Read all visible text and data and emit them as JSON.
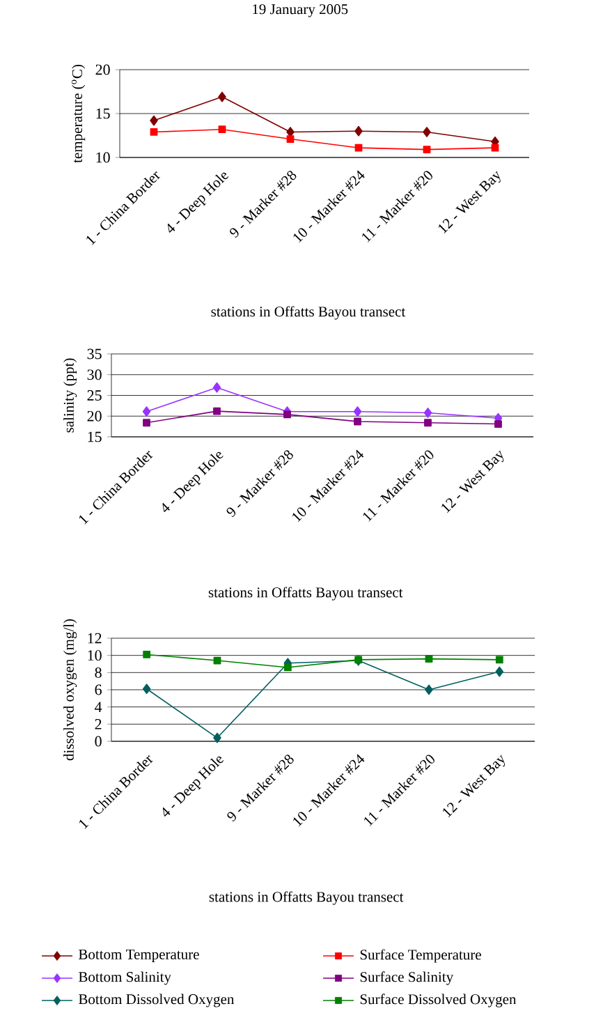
{
  "chart_data": [
    {
      "type": "line",
      "title": "19 January 2005",
      "xlabel": "stations in Offatts Bayou transect",
      "ylabel": "temperature ($^{o}$C)",
      "categories": [
        "1 - China Border",
        "4 - Deep Hole",
        "9 - Marker #28",
        "10 - Marker #24",
        "11 - Marker #20",
        "12 - West Bay"
      ],
      "ylim": [
        10,
        20
      ],
      "yticks": [
        10,
        15,
        20
      ],
      "grid": "y",
      "legend": "bottom",
      "line_style": "solid",
      "series": [
        {
          "name": "Bottom Temperature",
          "color": "#800000",
          "marker": "diamond",
          "values": [
            14.2,
            16.9,
            12.9,
            13.0,
            12.9,
            11.8
          ]
        },
        {
          "name": "Surface Temperature",
          "color": "#ff0000",
          "marker": "square",
          "values": [
            12.9,
            13.2,
            12.1,
            11.1,
            10.9,
            11.1
          ]
        }
      ]
    },
    {
      "type": "line",
      "xlabel": "stations in Offatts Bayou transect",
      "ylabel": "salinity (ppt)",
      "categories": [
        "1 - China Border",
        "4 - Deep Hole",
        "9 - Marker #28",
        "10 - Marker #24",
        "11 - Marker #20",
        "12 - West Bay"
      ],
      "ylim": [
        15,
        35
      ],
      "yticks": [
        15,
        20,
        25,
        30,
        35
      ],
      "grid": "y",
      "legend": "bottom",
      "line_style": "solid",
      "series": [
        {
          "name": "Bottom Salinity",
          "color": "#9933ff",
          "marker": "diamond",
          "values": [
            21.1,
            26.9,
            21.1,
            21.1,
            20.8,
            19.5
          ]
        },
        {
          "name": "Surface Salinity",
          "color": "#800080",
          "marker": "square",
          "values": [
            18.4,
            21.2,
            20.4,
            18.7,
            18.4,
            18.1
          ]
        }
      ]
    },
    {
      "type": "line",
      "xlabel": "stations in Offatts Bayou transect",
      "ylabel": "dissolved oxygen (mg/l)",
      "categories": [
        "1 - China Border",
        "4 - Deep Hole",
        "9 - Marker #28",
        "10 - Marker #24",
        "11 - Marker #20",
        "12 - West Bay"
      ],
      "ylim": [
        0,
        12
      ],
      "yticks": [
        0,
        2,
        4,
        6,
        8,
        10,
        12
      ],
      "grid": "y",
      "legend": "bottom",
      "line_style": "solid",
      "series": [
        {
          "name": "Bottom Dissolved Oxygen",
          "color": "#005f5f",
          "marker": "diamond",
          "values": [
            6.1,
            0.4,
            9.1,
            9.4,
            6.0,
            8.1
          ]
        },
        {
          "name": "Surface Dissolved Oxygen",
          "color": "#008000",
          "marker": "square",
          "values": [
            10.1,
            9.4,
            8.6,
            9.5,
            9.6,
            9.5
          ]
        }
      ]
    }
  ]
}
